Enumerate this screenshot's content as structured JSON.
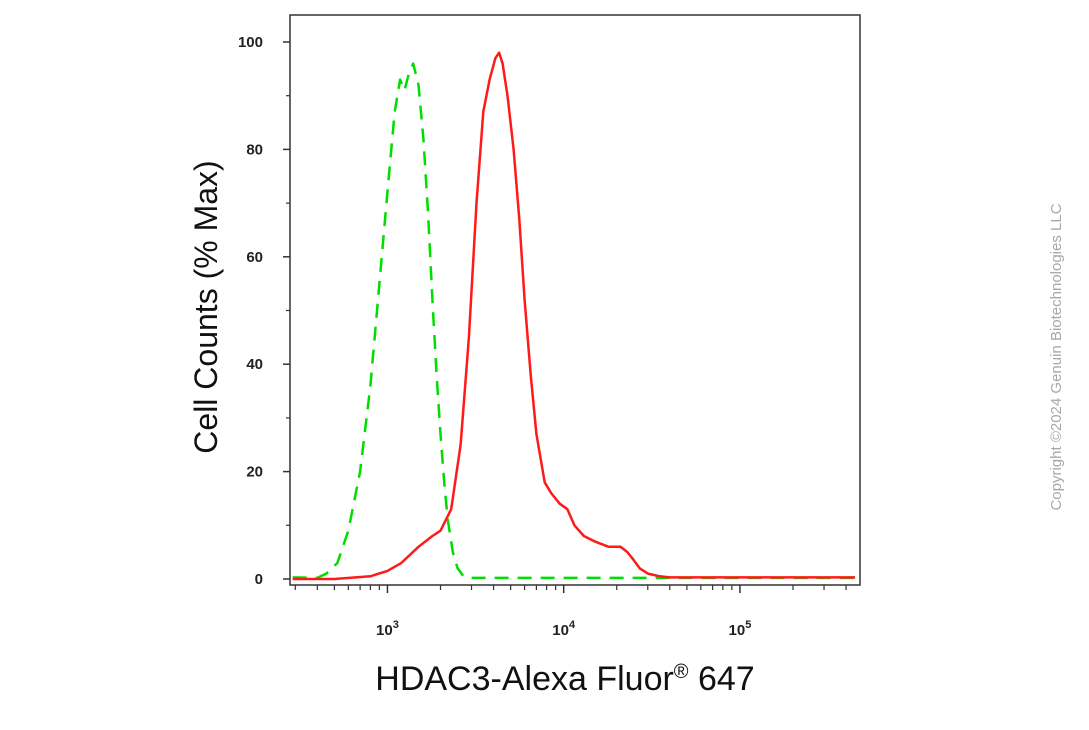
{
  "copyright": "Copyright ©2024 Genuin Biotechnologies LLC",
  "chart_data": {
    "type": "line",
    "title": "",
    "xlabel": "HDAC3-Alexa Fluor",
    "xlabel_superscript": "®",
    "xlabel_suffix": " 647",
    "ylabel": "Cell Counts (% Max)",
    "xscale": "log",
    "xlim": [
      280,
      480000
    ],
    "ylim": [
      0,
      100
    ],
    "yticks": [
      "0",
      "20",
      "40",
      "60",
      "80",
      "100"
    ],
    "ytick_values": [
      0,
      20,
      40,
      60,
      80,
      100
    ],
    "xticks": [
      {
        "value": 1000,
        "base": "10",
        "exp": "3"
      },
      {
        "value": 10000,
        "base": "10",
        "exp": "4"
      },
      {
        "value": 100000,
        "base": "10",
        "exp": "5"
      }
    ],
    "grid": false,
    "series": [
      {
        "color": "#00dd00",
        "style": "dashed",
        "x": [
          290,
          400,
          450,
          520,
          600,
          700,
          800,
          900,
          1000,
          1100,
          1180,
          1250,
          1320,
          1400,
          1500,
          1600,
          1700,
          1800,
          1900,
          2000,
          2100,
          2200,
          2350,
          2500,
          2700,
          3000,
          4000,
          10000,
          100000,
          450000
        ],
        "y": [
          0.3,
          0.2,
          1,
          3,
          9,
          20,
          36,
          55,
          72,
          87,
          93,
          91,
          94,
          96,
          92,
          82,
          68,
          52,
          38,
          27,
          18,
          11,
          5,
          2,
          0.5,
          0.2,
          0.2,
          0.2,
          0.2,
          0.2
        ]
      },
      {
        "color": "#ff1a1a",
        "style": "solid",
        "x": [
          290,
          500,
          800,
          1000,
          1200,
          1500,
          1800,
          2000,
          2300,
          2600,
          2900,
          3200,
          3500,
          3800,
          4100,
          4300,
          4500,
          4800,
          5200,
          5600,
          6000,
          6500,
          7000,
          7800,
          8500,
          9500,
          10500,
          11500,
          13000,
          15000,
          18000,
          21000,
          23000,
          25000,
          27000,
          30000,
          35000,
          40000,
          60000,
          100000,
          200000,
          450000
        ],
        "y": [
          0,
          0,
          0.5,
          1.5,
          3,
          6,
          8,
          9,
          13,
          25,
          45,
          70,
          87,
          93,
          97,
          98,
          96,
          90,
          80,
          67,
          52,
          38,
          27,
          18,
          16,
          14,
          13,
          10,
          8,
          7,
          6,
          6,
          5,
          3.5,
          2,
          1,
          0.5,
          0.3,
          0.3,
          0.3,
          0.3,
          0.3
        ]
      }
    ]
  }
}
